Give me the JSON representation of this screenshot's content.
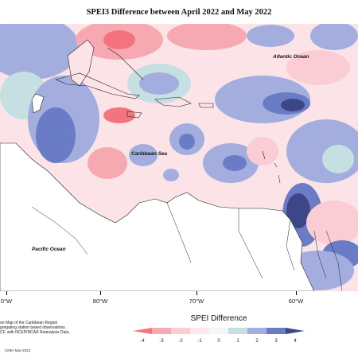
{
  "title": "SPEI3 Difference between April 2022 and May 2022",
  "ocean_labels": {
    "atlantic": "Atlantic Ocean",
    "caribbean": "Caribbean Sea",
    "pacific": "Pacific Ocean"
  },
  "longitude_labels": [
    "0°W",
    "80°W",
    "70°W",
    "60°W"
  ],
  "legend": {
    "title": "SPEI Difference",
    "ticks": [
      "-4",
      "-3",
      "-2",
      "-1",
      "0",
      "1",
      "2",
      "3",
      "4"
    ],
    "colors": [
      "#f3747d",
      "#f7a9b2",
      "#f9cdd3",
      "#fce7ea",
      "#f4f6f8",
      "#c5dfe3",
      "#a3aede",
      "#6a7cc6",
      "#3d4686"
    ]
  },
  "notes": [
    "on Map of the Caribbean Region",
    "gregating station based observations",
    "CF, with NCEP/NCAR Reanalysis Data."
  ],
  "credit": "CIMH Mar-2023"
}
